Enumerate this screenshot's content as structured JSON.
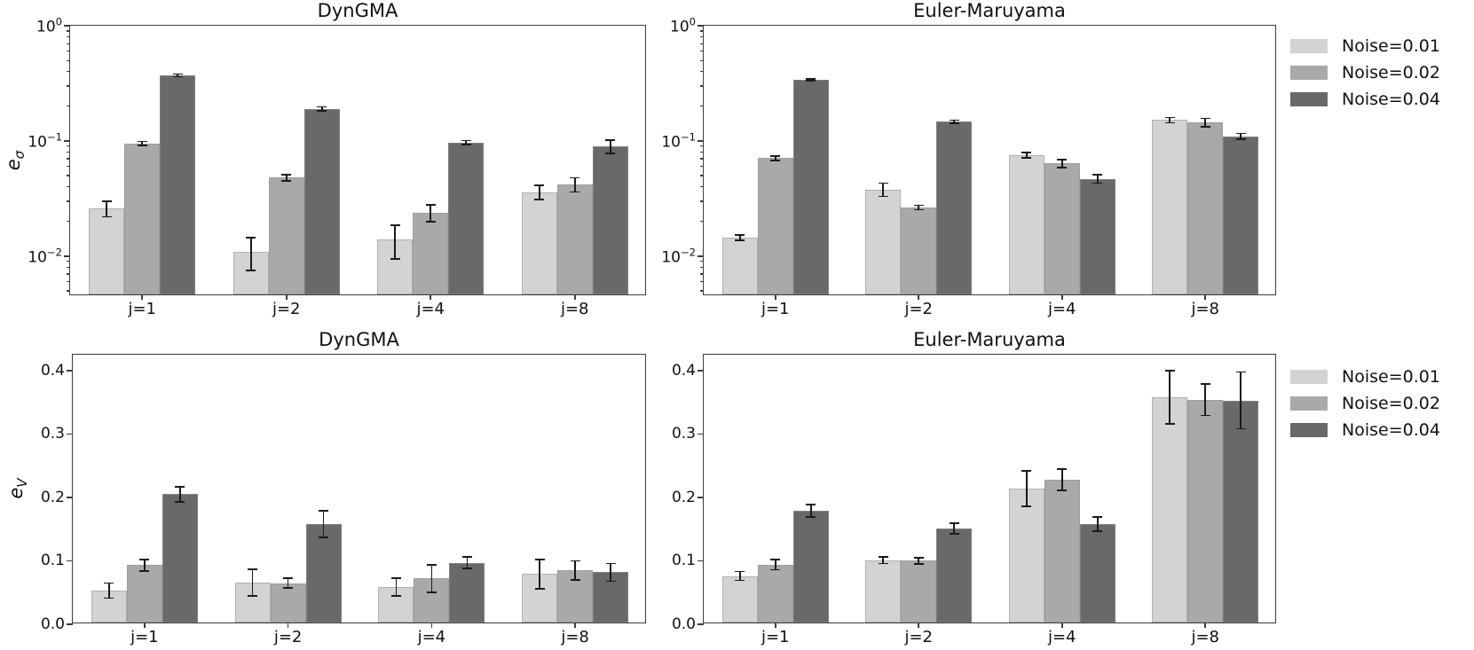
{
  "figure": {
    "background": "#ffffff"
  },
  "legend": {
    "items": [
      {
        "label": "Noise=0.01",
        "color": "#d3d3d3"
      },
      {
        "label": "Noise=0.02",
        "color": "#a9a9a9"
      },
      {
        "label": "Noise=0.04",
        "color": "#696969"
      }
    ]
  },
  "chart_data": [
    {
      "type": "bar",
      "title": "DynGMA",
      "ylabel_main": "e",
      "ylabel_sub": "σ",
      "yscale": "log",
      "ylim": [
        0.0045,
        1.0
      ],
      "grid": false,
      "legend_position": "outside-right",
      "categories": [
        "j=1",
        "j=2",
        "j=4",
        "j=8"
      ],
      "yticks": [
        {
          "v": 1.0,
          "base": "10",
          "exp": "0"
        },
        {
          "v": 0.1,
          "base": "10",
          "exp": "−1"
        },
        {
          "v": 0.01,
          "base": "10",
          "exp": "−2"
        }
      ],
      "series": [
        {
          "name": "Noise=0.01",
          "color": "#d3d3d3",
          "values": [
            0.026,
            0.011,
            0.014,
            0.036
          ],
          "errors": [
            0.004,
            0.0035,
            0.0045,
            0.005
          ]
        },
        {
          "name": "Noise=0.02",
          "color": "#a9a9a9",
          "values": [
            0.095,
            0.048,
            0.024,
            0.042
          ],
          "errors": [
            0.004,
            0.003,
            0.004,
            0.006
          ]
        },
        {
          "name": "Noise=0.04",
          "color": "#696969",
          "values": [
            0.37,
            0.19,
            0.097,
            0.09
          ],
          "errors": [
            0.01,
            0.007,
            0.004,
            0.012
          ]
        }
      ]
    },
    {
      "type": "bar",
      "title": "Euler-Maruyama",
      "ylabel_main": "",
      "ylabel_sub": "",
      "yscale": "log",
      "ylim": [
        0.0045,
        1.0
      ],
      "grid": false,
      "legend_position": "outside-right",
      "categories": [
        "j=1",
        "j=2",
        "j=4",
        "j=8"
      ],
      "yticks": [
        {
          "v": 1.0,
          "base": "10",
          "exp": "0"
        },
        {
          "v": 0.1,
          "base": "10",
          "exp": "−1"
        },
        {
          "v": 0.01,
          "base": "10",
          "exp": "−2"
        }
      ],
      "series": [
        {
          "name": "Noise=0.01",
          "color": "#d3d3d3",
          "values": [
            0.0145,
            0.038,
            0.075,
            0.152
          ],
          "errors": [
            0.0008,
            0.005,
            0.004,
            0.008
          ]
        },
        {
          "name": "Noise=0.02",
          "color": "#a9a9a9",
          "values": [
            0.071,
            0.0265,
            0.064,
            0.145
          ],
          "errors": [
            0.003,
            0.0012,
            0.005,
            0.012
          ]
        },
        {
          "name": "Noise=0.04",
          "color": "#696969",
          "values": [
            0.34,
            0.147,
            0.047,
            0.11
          ],
          "errors": [
            0.006,
            0.005,
            0.004,
            0.006
          ]
        }
      ]
    },
    {
      "type": "bar",
      "title": "DynGMA",
      "ylabel_main": "e",
      "ylabel_sub": "V",
      "yscale": "linear",
      "ylim": [
        0.0,
        0.425
      ],
      "grid": false,
      "legend_position": "outside-right",
      "categories": [
        "j=1",
        "j=2",
        "j=4",
        "j=8"
      ],
      "yticks": [
        {
          "v": 0.0,
          "text": "0.0"
        },
        {
          "v": 0.1,
          "text": "0.1"
        },
        {
          "v": 0.2,
          "text": "0.2"
        },
        {
          "v": 0.3,
          "text": "0.3"
        },
        {
          "v": 0.4,
          "text": "0.4"
        }
      ],
      "series": [
        {
          "name": "Noise=0.01",
          "color": "#d3d3d3",
          "values": [
            0.053,
            0.066,
            0.059,
            0.079
          ],
          "errors": [
            0.012,
            0.021,
            0.014,
            0.023
          ]
        },
        {
          "name": "Noise=0.02",
          "color": "#a9a9a9",
          "values": [
            0.093,
            0.065,
            0.072,
            0.085
          ],
          "errors": [
            0.009,
            0.008,
            0.022,
            0.015
          ]
        },
        {
          "name": "Noise=0.04",
          "color": "#696969",
          "values": [
            0.205,
            0.158,
            0.097,
            0.082
          ],
          "errors": [
            0.012,
            0.021,
            0.009,
            0.014
          ]
        }
      ]
    },
    {
      "type": "bar",
      "title": "Euler-Maruyama",
      "ylabel_main": "",
      "ylabel_sub": "",
      "yscale": "linear",
      "ylim": [
        0.0,
        0.425
      ],
      "grid": false,
      "legend_position": "outside-right",
      "categories": [
        "j=1",
        "j=2",
        "j=4",
        "j=8"
      ],
      "yticks": [
        {
          "v": 0.0,
          "text": "0.0"
        },
        {
          "v": 0.1,
          "text": "0.1"
        },
        {
          "v": 0.2,
          "text": "0.2"
        },
        {
          "v": 0.3,
          "text": "0.3"
        },
        {
          "v": 0.4,
          "text": "0.4"
        }
      ],
      "series": [
        {
          "name": "Noise=0.01",
          "color": "#d3d3d3",
          "values": [
            0.076,
            0.101,
            0.214,
            0.358
          ],
          "errors": [
            0.007,
            0.005,
            0.028,
            0.042
          ]
        },
        {
          "name": "Noise=0.02",
          "color": "#a9a9a9",
          "values": [
            0.094,
            0.1,
            0.228,
            0.354
          ],
          "errors": [
            0.008,
            0.005,
            0.017,
            0.025
          ]
        },
        {
          "name": "Noise=0.04",
          "color": "#696969",
          "values": [
            0.179,
            0.151,
            0.158,
            0.353
          ],
          "errors": [
            0.01,
            0.008,
            0.011,
            0.045
          ]
        }
      ]
    }
  ]
}
